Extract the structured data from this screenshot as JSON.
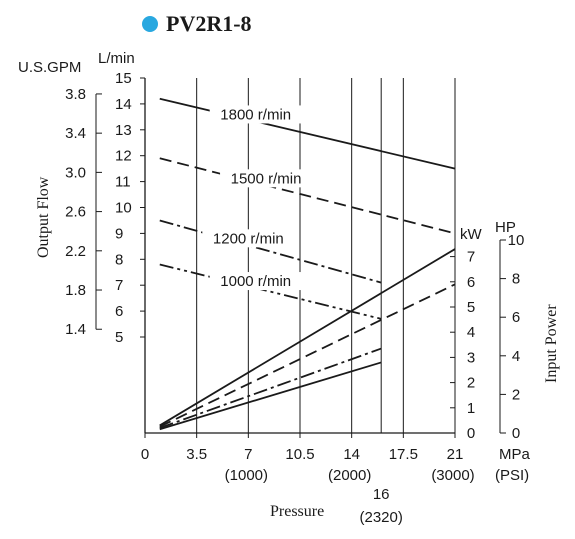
{
  "title": "PV2R1-8",
  "colors": {
    "bullet": "#29a8e0",
    "ink": "#1a1a1a"
  },
  "chart_data": {
    "type": "line",
    "title": "PV2R1-8",
    "xlabel": "Pressure",
    "x_unit": "MPa",
    "x_unit_alt": "(PSI)",
    "x_ticks": [
      0,
      3.5,
      7,
      10.5,
      14,
      17.5,
      21
    ],
    "x_tick_labels": [
      "0",
      "3.5",
      "7",
      "10.5",
      "14",
      "17.5",
      "21"
    ],
    "x_psi_ticks": [
      {
        "mpa": 7,
        "label": "(1000)"
      },
      {
        "mpa": 14,
        "label": "(2000)"
      },
      {
        "mpa": 21,
        "label": "(3000)"
      }
    ],
    "x_extra_tick": {
      "mpa": 16,
      "label": "16",
      "psi_label": "(2320)"
    },
    "xlim": [
      0,
      21
    ],
    "grid_x": [
      3.5,
      7,
      10.5,
      14,
      16,
      17.5,
      21
    ],
    "ylabel_left": "Output Flow",
    "y_flow_unit": "L/min",
    "y_flow_ticks": [
      5,
      6,
      7,
      8,
      9,
      10,
      11,
      12,
      13,
      14,
      15
    ],
    "y_flow_tick_labels": [
      "5",
      "6",
      "7",
      "8",
      "9",
      "10",
      "11",
      "12",
      "13",
      "14",
      "15"
    ],
    "y_gpm_unit": "U.S.GPM",
    "y_gpm_ticks": [
      1.4,
      1.8,
      2.2,
      2.6,
      3.0,
      3.4,
      3.8
    ],
    "y_gpm_tick_labels": [
      "1.4",
      "1.8",
      "2.2",
      "2.6",
      "3.0",
      "3.4",
      "3.8"
    ],
    "ylabel_right": "Input Power",
    "y_kw_unit": "kW",
    "y_kw_ticks": [
      0,
      1,
      2,
      3,
      4,
      5,
      6,
      7
    ],
    "y_kw_tick_labels": [
      "0",
      "1",
      "2",
      "3",
      "4",
      "5",
      "6",
      "7"
    ],
    "y_hp_unit": "HP",
    "y_hp_ticks": [
      0,
      2,
      4,
      6,
      8,
      10
    ],
    "y_hp_tick_labels": [
      "0",
      "2",
      "4",
      "6",
      "8",
      "10"
    ],
    "flow_series": [
      {
        "name": "1800 r/min",
        "style": "solid",
        "x": [
          1,
          21
        ],
        "y": [
          14.2,
          11.5
        ]
      },
      {
        "name": "1500 r/min",
        "style": "dashed",
        "x": [
          1,
          21
        ],
        "y": [
          11.9,
          9.0
        ]
      },
      {
        "name": "1200 r/min",
        "style": "dashdot",
        "x": [
          1,
          16
        ],
        "y": [
          9.5,
          7.1
        ]
      },
      {
        "name": "1000 r/min",
        "style": "dashdotdot",
        "x": [
          1,
          16
        ],
        "y": [
          7.8,
          5.7
        ]
      }
    ],
    "power_series": [
      {
        "rpm": "1800 r/min",
        "style": "solid",
        "x": [
          1,
          21
        ],
        "y": [
          0.3,
          7.3
        ]
      },
      {
        "rpm": "1500 r/min",
        "style": "dashed",
        "x": [
          1,
          21
        ],
        "y": [
          0.25,
          5.9
        ]
      },
      {
        "rpm": "1200 r/min",
        "style": "dashdot",
        "x": [
          1,
          16
        ],
        "y": [
          0.2,
          3.35
        ]
      },
      {
        "rpm": "1000 r/min",
        "style": "solid",
        "x": [
          1,
          16
        ],
        "y": [
          0.15,
          2.8
        ]
      }
    ]
  }
}
